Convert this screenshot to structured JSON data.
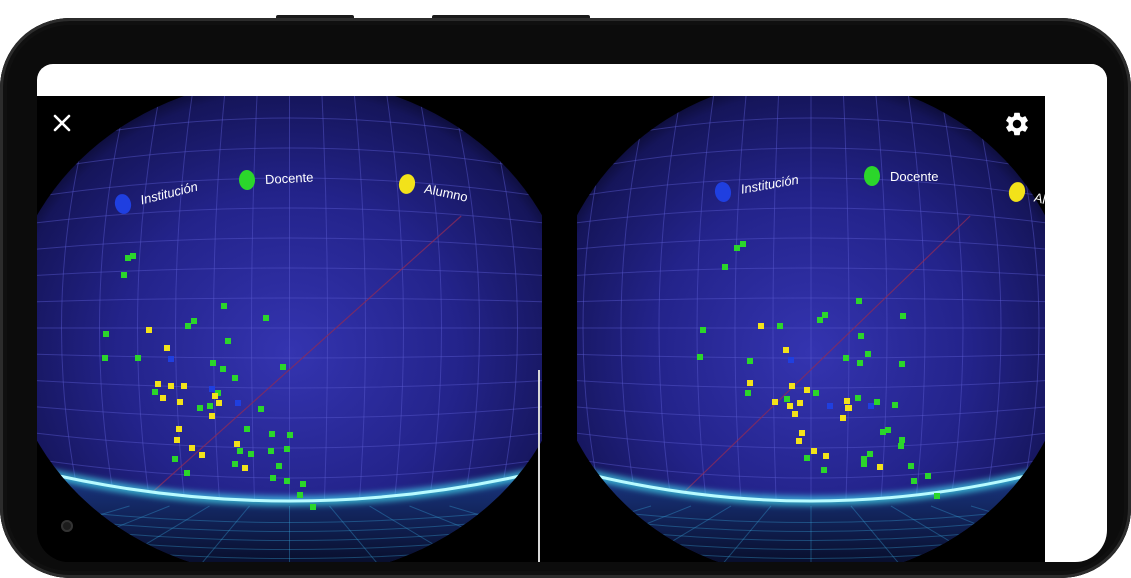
{
  "legend": {
    "institucion": {
      "label": "Institución",
      "color": "#1f3fe0"
    },
    "docente": {
      "label": "Docente",
      "color": "#2bd62b"
    },
    "alumno": {
      "label": "Alumno",
      "color": "#f2e21a"
    }
  },
  "controls": {
    "close_icon": "close-icon",
    "settings_icon": "gear-icon"
  },
  "colors": {
    "sky_dark": "#06061e",
    "sky_mid": "#23238a",
    "sky_light": "#3434b0",
    "grid": "#5a5ad0",
    "horizon_glow": "#48f0ff",
    "diagonal": "#8a2a5a"
  }
}
